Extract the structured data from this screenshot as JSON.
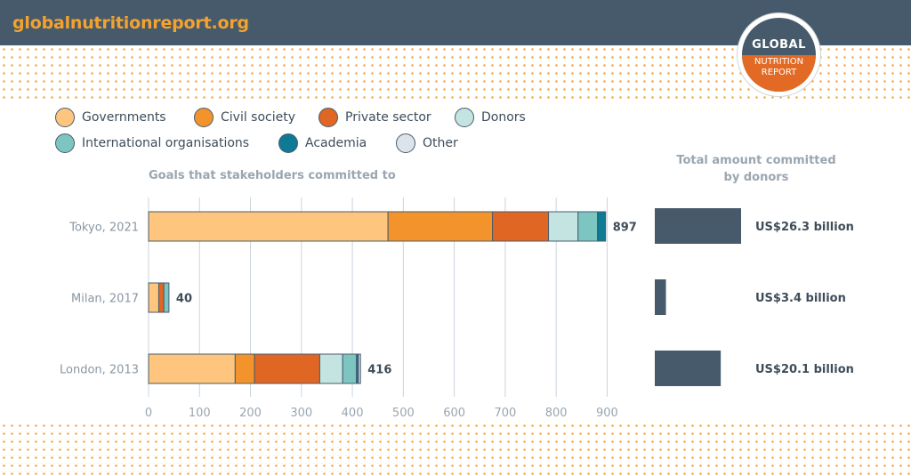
{
  "site": "globalnutritionreport.org",
  "logo": {
    "line1": "GLOBAL",
    "line2": "NUTRITION",
    "line3": "REPORT"
  },
  "colors": {
    "governments": "#fdc57d",
    "civil_society": "#f3932c",
    "private_sector": "#e06624",
    "donors": "#c3e4e0",
    "international_organisations": "#7cc5c1",
    "academia": "#0e7a93",
    "other": "#dde3ea",
    "donor_bar": "#465a6b"
  },
  "chart_data": [
    {
      "type": "bar",
      "orientation": "horizontal",
      "stacked": true,
      "title": "Goals that stakeholders committed to",
      "categories": [
        "Tokyo, 2021",
        "Milan, 2017",
        "London, 2013"
      ],
      "series": [
        {
          "name": "Governments",
          "values": [
            470,
            20,
            170
          ]
        },
        {
          "name": "Civil society",
          "values": [
            205,
            0,
            38
          ]
        },
        {
          "name": "Private sector",
          "values": [
            110,
            10,
            128
          ]
        },
        {
          "name": "Donors",
          "values": [
            58,
            0,
            45
          ]
        },
        {
          "name": "International organisations",
          "values": [
            38,
            10,
            27
          ]
        },
        {
          "name": "Academia",
          "values": [
            16,
            0,
            4
          ]
        },
        {
          "name": "Other",
          "values": [
            0,
            0,
            4
          ]
        }
      ],
      "totals": [
        "897",
        "40",
        "416"
      ],
      "xticks": [
        "0",
        "100",
        "200",
        "300",
        "400",
        "500",
        "600",
        "700",
        "800",
        "900"
      ],
      "xlim": [
        0,
        900
      ],
      "grid": true
    },
    {
      "type": "bar",
      "orientation": "horizontal",
      "title": "Total amount committed by donors",
      "title_lines": [
        "Total amount committed",
        "by donors"
      ],
      "categories": [
        "Tokyo, 2021",
        "Milan, 2017",
        "London, 2013"
      ],
      "values": [
        26.3,
        3.4,
        20.1
      ],
      "labels": [
        "US$26.3 billion",
        "US$3.4 billion",
        "US$20.1 billion"
      ],
      "xlim": [
        0,
        26.3
      ]
    }
  ]
}
